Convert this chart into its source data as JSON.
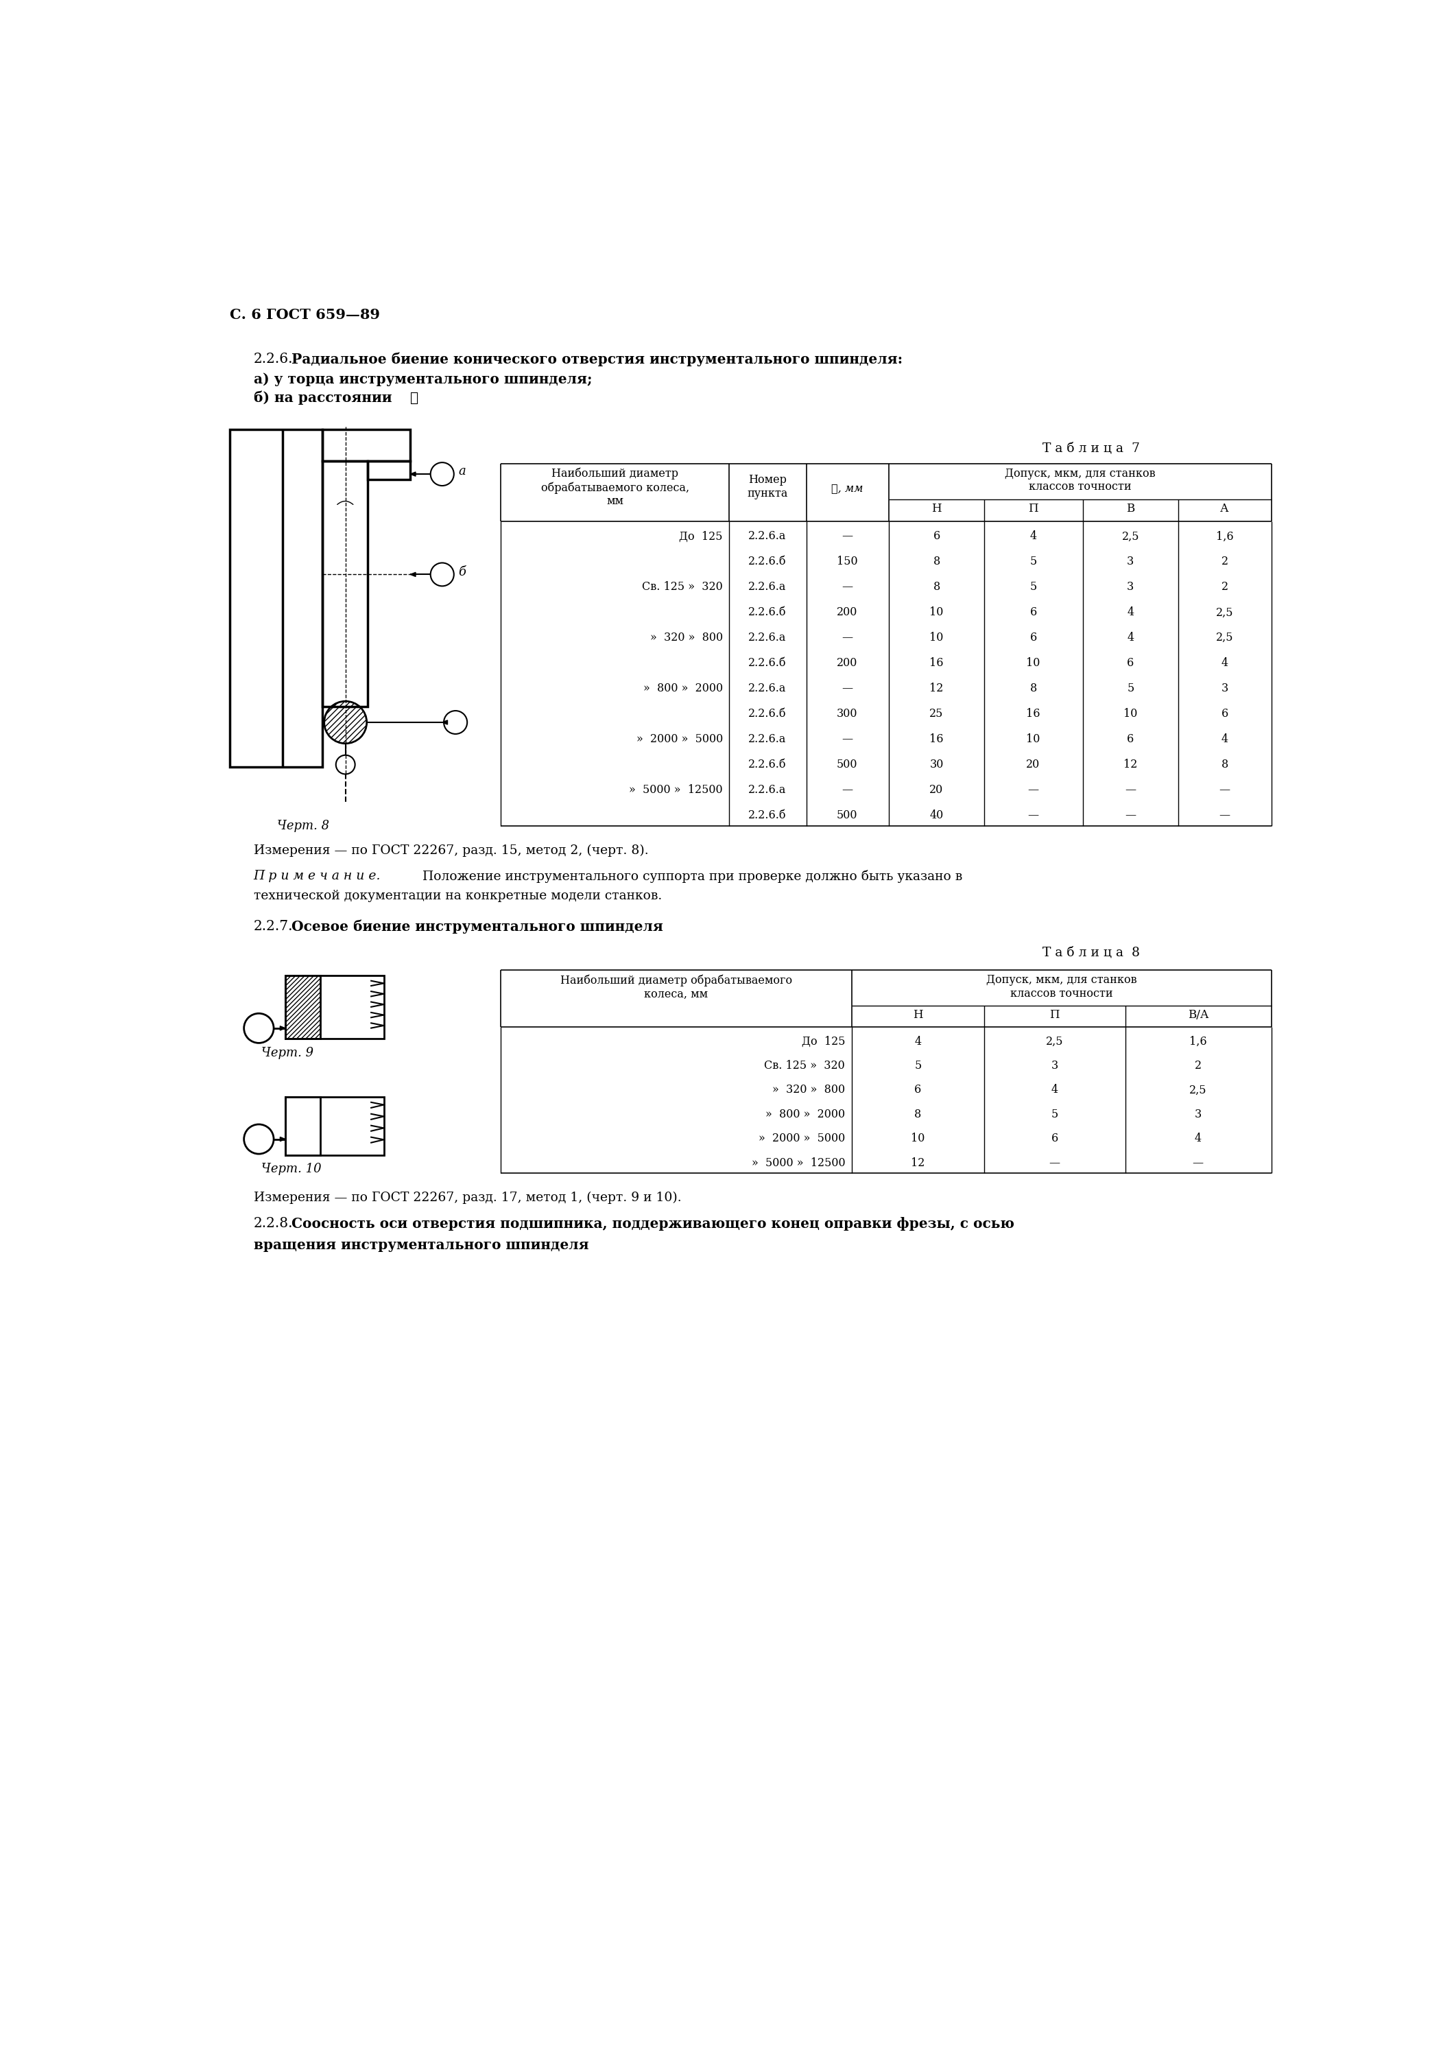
{
  "page_header": "С. 6 ГОСТ 659—89",
  "section_226_num": "2.2.6.",
  "section_226_bold": " Радиальное биение конического отверстия инструментального шпинделя:",
  "section_226_a": "а) у торца инструментального шпинделя;",
  "section_226_b": "б) на расстоянии ℓ",
  "table7_title": "Т а б л и ц а  7",
  "table7_col1": "Наибольший диаметр\nобрабатываемого колеса,\nмм",
  "table7_col2": "Номер\nпункта",
  "table7_col3": "ℓ, мм",
  "table7_group_header": "Допуск, мкм, для станков\nклассов точности",
  "table7_subheaders": [
    "Н",
    "П",
    "В",
    "А"
  ],
  "table7_rows": [
    [
      "До  125",
      "2.2.6.а",
      "—",
      "6",
      "4",
      "2,5",
      "1,6"
    ],
    [
      "",
      "2.2.6.б",
      "150",
      "8",
      "5",
      "3",
      "2"
    ],
    [
      "Св. 125 »  320",
      "2.2.6.а",
      "—",
      "8",
      "5",
      "3",
      "2"
    ],
    [
      "",
      "2.2.6.б",
      "200",
      "10",
      "6",
      "4",
      "2,5"
    ],
    [
      "»  320 »  800",
      "2.2.6.а",
      "—",
      "10",
      "6",
      "4",
      "2,5"
    ],
    [
      "",
      "2.2.6.б",
      "200",
      "16",
      "10",
      "6",
      "4"
    ],
    [
      "»  800 »  2000",
      "2.2.6.а",
      "—",
      "12",
      "8",
      "5",
      "3"
    ],
    [
      "",
      "2.2.6.б",
      "300",
      "25",
      "16",
      "10",
      "6"
    ],
    [
      "»  2000 »  5000",
      "2.2.6.а",
      "—",
      "16",
      "10",
      "6",
      "4"
    ],
    [
      "",
      "2.2.6.б",
      "500",
      "30",
      "20",
      "12",
      "8"
    ],
    [
      "»  5000 »  12500",
      "2.2.6.а",
      "—",
      "20",
      "—",
      "—",
      "—"
    ],
    [
      "",
      "2.2.6.б",
      "500",
      "40",
      "—",
      "—",
      "—"
    ]
  ],
  "chert8_label": "Черт. 8",
  "measurement_text": "Измерения — по ГОСТ 22267, разд. 15, метод 2, (черт. 8).",
  "note_prefix": "П р и м е ч а н и е.",
  "note_line1": " Положение инструментального суппорта при проверке должно быть указано в",
  "note_line2": "технической документации на конкретные модели станков.",
  "section_227_num": "2.2.7.",
  "section_227_bold": " Осевое биение инструментального шпинделя",
  "table8_title": "Т а б л и ц а  8",
  "table8_col1": "Наибольший диаметр обрабатываемого\nколеса, мм",
  "table8_group_header": "Допуск, мкм, для станков\nклассов точности",
  "table8_subheaders": [
    "Н",
    "П",
    "В/А"
  ],
  "table8_rows": [
    [
      "До  125",
      "4",
      "2,5",
      "1,6"
    ],
    [
      "Св. 125 »  320",
      "5",
      "3",
      "2"
    ],
    [
      "»  320 »  800",
      "6",
      "4",
      "2,5"
    ],
    [
      "»  800 »  2000",
      "8",
      "5",
      "3"
    ],
    [
      "»  2000 »  5000",
      "10",
      "6",
      "4"
    ],
    [
      "»  5000 »  12500",
      "12",
      "—",
      "—"
    ]
  ],
  "chert9_label": "Черт. 9",
  "chert10_label": "Черт. 10",
  "measurement_text2": "Измерения — по ГОСТ 22267, разд. 17, метод 1, (черт. 9 и 10).",
  "section_228_num": "2.2.8.",
  "section_228_bold": " Соосность оси отверстия подшипника, поддерживающего конец оправки фрезы, с осью",
  "section_228_bold2": "вращения инструментального шпинделя"
}
